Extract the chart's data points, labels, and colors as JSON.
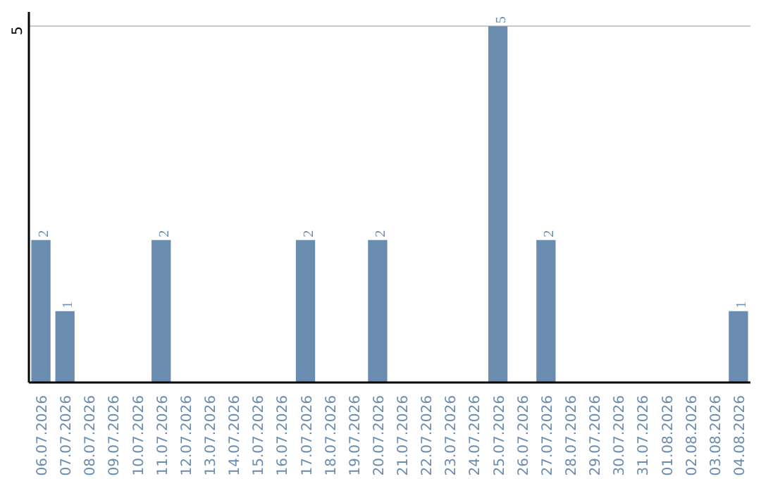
{
  "chart_data": {
    "type": "bar",
    "categories": [
      "06.07.2026",
      "07.07.2026",
      "08.07.2026",
      "09.07.2026",
      "10.07.2026",
      "11.07.2026",
      "12.07.2026",
      "13.07.2026",
      "14.07.2026",
      "15.07.2026",
      "16.07.2026",
      "17.07.2026",
      "18.07.2026",
      "19.07.2026",
      "20.07.2026",
      "21.07.2026",
      "22.07.2026",
      "23.07.2026",
      "24.07.2026",
      "25.07.2026",
      "26.07.2026",
      "27.07.2026",
      "28.07.2026",
      "29.07.2026",
      "30.07.2026",
      "31.07.2026",
      "01.08.2026",
      "02.08.2026",
      "03.08.2026",
      "04.08.2026"
    ],
    "values": [
      2,
      1,
      0,
      0,
      0,
      2,
      0,
      0,
      0,
      0,
      0,
      2,
      0,
      0,
      2,
      0,
      0,
      0,
      0,
      5,
      0,
      2,
      0,
      0,
      0,
      0,
      0,
      0,
      0,
      1
    ],
    "value_labels": [
      "2",
      "1",
      null,
      null,
      null,
      "2",
      null,
      null,
      null,
      null,
      null,
      "2",
      null,
      null,
      "2",
      null,
      null,
      null,
      null,
      "5",
      null,
      "2",
      null,
      null,
      null,
      null,
      null,
      null,
      null,
      "1"
    ],
    "color": "#6a8caf",
    "ylim": [
      0,
      5.2
    ],
    "yticks": [
      5
    ],
    "grid": "y"
  }
}
